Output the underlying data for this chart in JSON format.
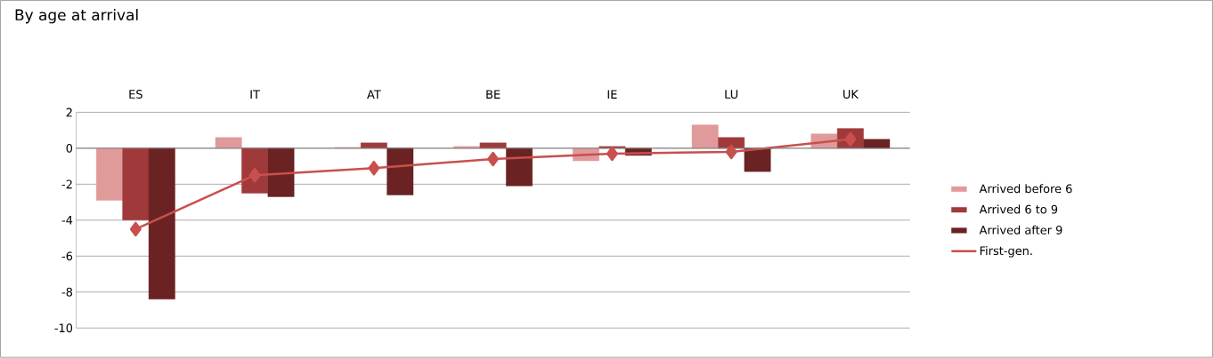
{
  "chart_data": {
    "type": "bar",
    "title": "By age at arrival",
    "categories": [
      "ES",
      "IT",
      "AT",
      "BE",
      "IE",
      "LU",
      "UK"
    ],
    "series": [
      {
        "name": "Arrived before 6",
        "color": "#e09a9a",
        "values": [
          -2.9,
          0.6,
          0.05,
          0.1,
          -0.7,
          1.3,
          0.8
        ]
      },
      {
        "name": "Arrived 6 to 9",
        "color": "#a0393a",
        "values": [
          -4.0,
          -2.5,
          0.3,
          0.3,
          0.1,
          0.6,
          1.1
        ]
      },
      {
        "name": "Arrived after 9",
        "color": "#6b2222",
        "values": [
          -8.4,
          -2.7,
          -2.6,
          -2.1,
          -0.4,
          -1.3,
          0.5
        ]
      },
      {
        "name": "First-gen.",
        "type": "line",
        "color": "#c8504e",
        "marker": "diamond",
        "values": [
          -4.5,
          -1.5,
          -1.1,
          -0.6,
          -0.3,
          -0.2,
          0.5
        ]
      }
    ],
    "ylim": [
      -10,
      2
    ],
    "yticks": [
      -10,
      -8,
      -6,
      -4,
      -2,
      0,
      2
    ],
    "grid": "y",
    "legend": "right"
  }
}
